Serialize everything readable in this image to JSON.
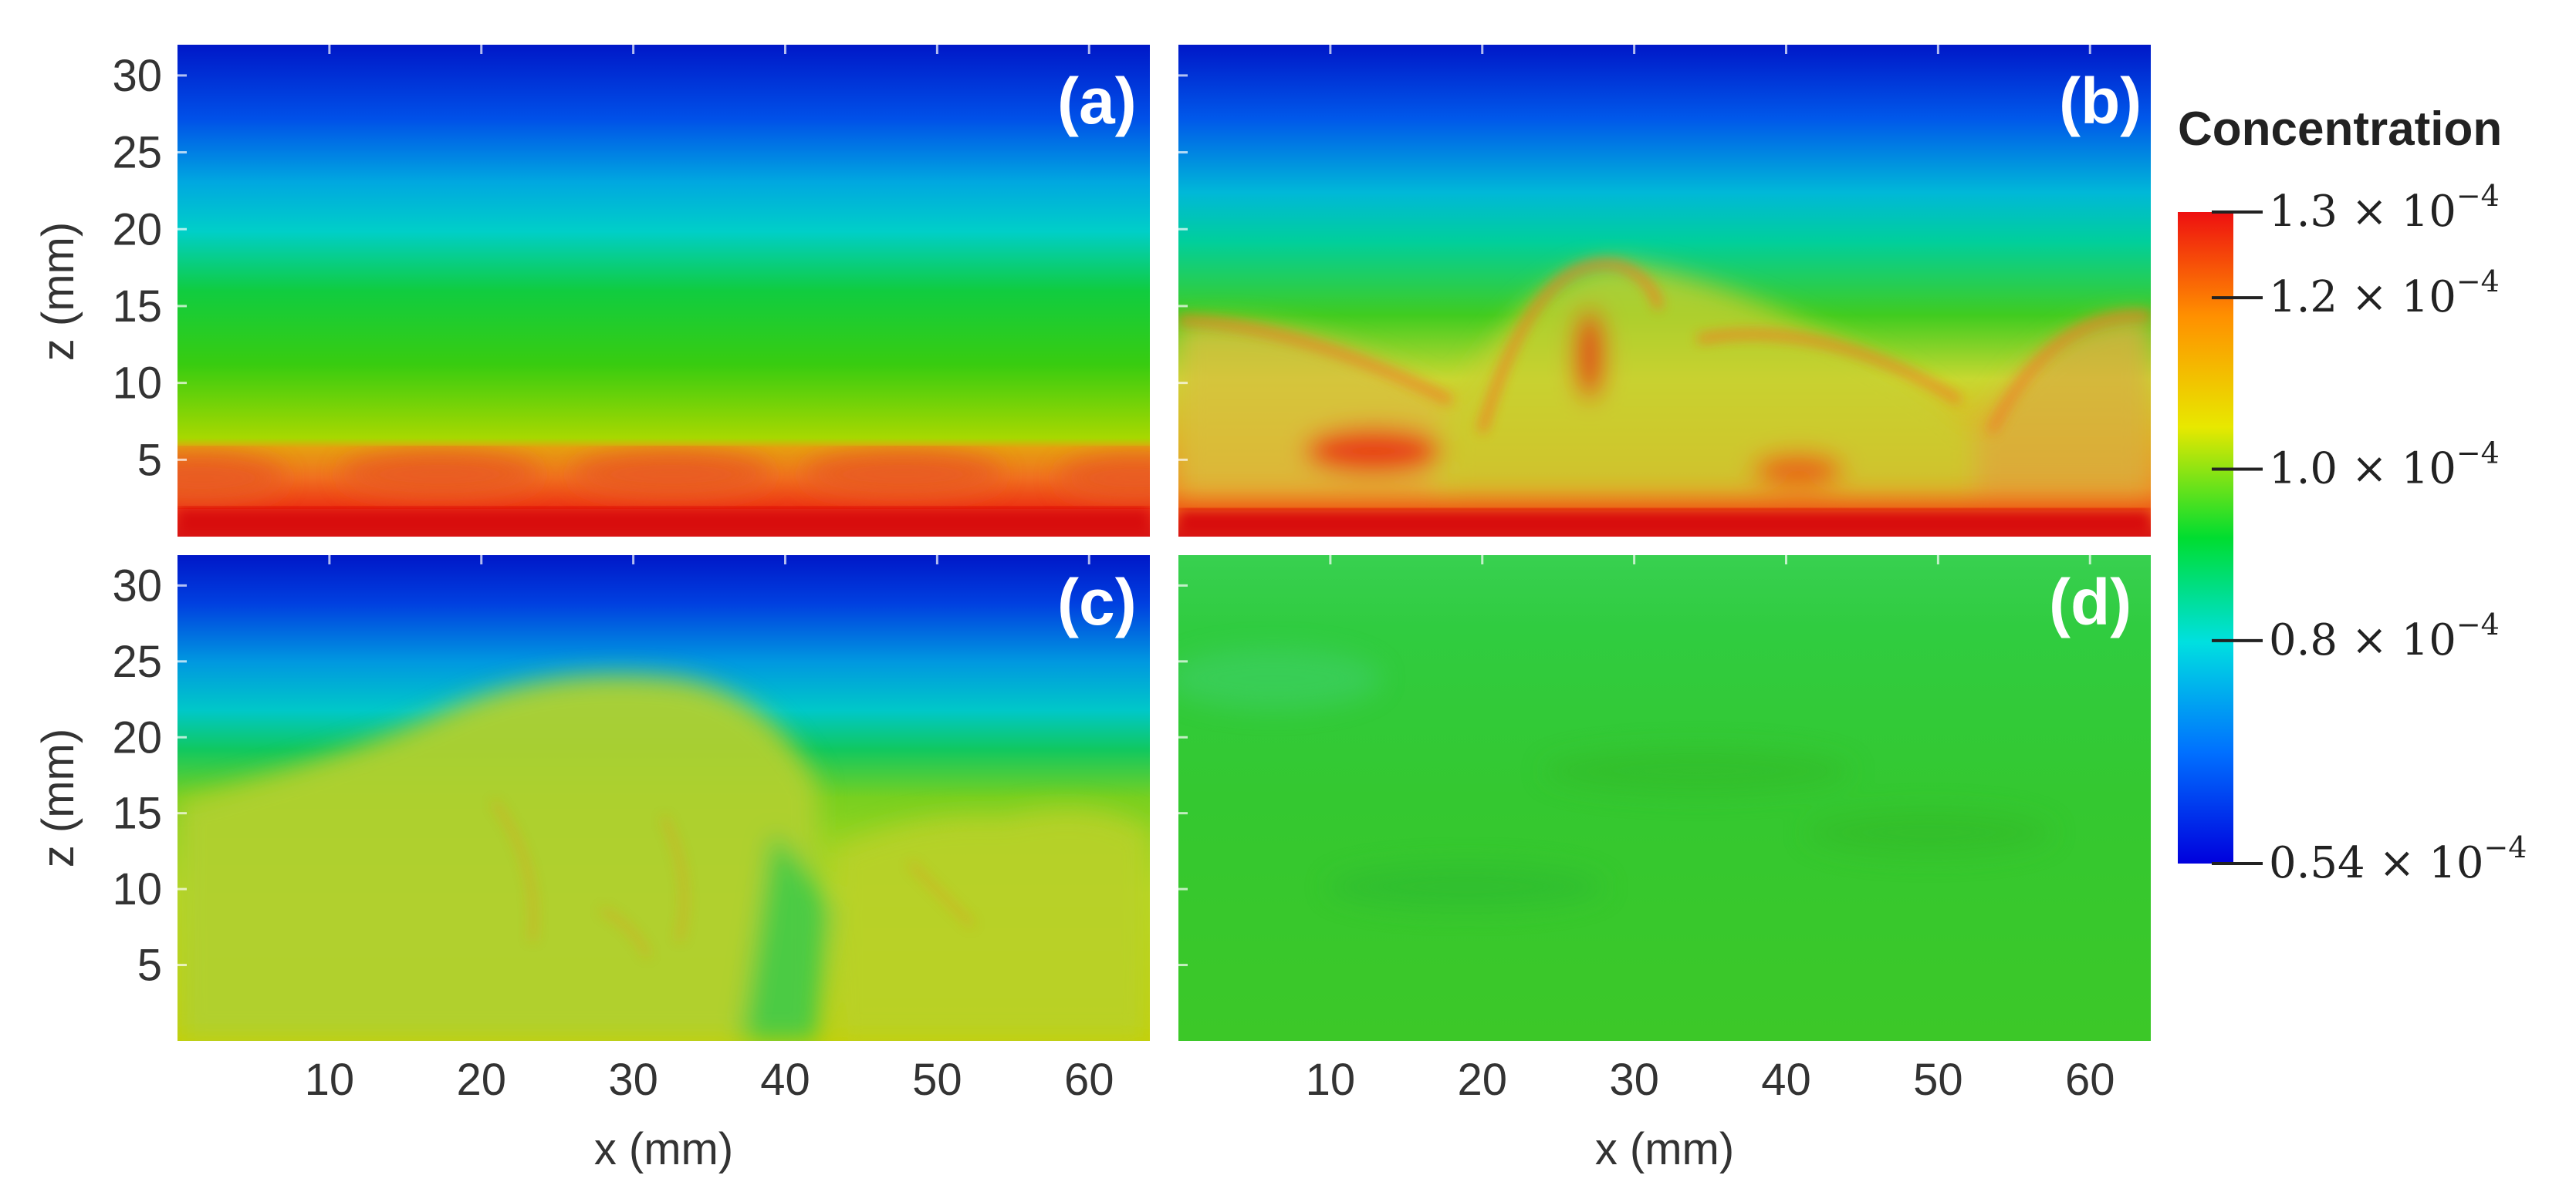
{
  "chart_data": [
    {
      "type": "heatmap",
      "panel_label": "(a)",
      "x_ticks": [
        "10",
        "20",
        "30",
        "40",
        "50",
        "60"
      ],
      "y_ticks": [
        "5",
        "10",
        "15",
        "20",
        "25",
        "30"
      ],
      "xlabel": "",
      "ylabel": "z (mm)",
      "xlim": [
        0,
        64
      ],
      "ylim": [
        0,
        32
      ],
      "description_values": {
        "bottom_layer_top_z": 6,
        "waves": 4
      }
    },
    {
      "type": "heatmap",
      "panel_label": "(b)",
      "x_ticks": [
        "10",
        "20",
        "30",
        "40",
        "50",
        "60"
      ],
      "y_ticks": [],
      "xlabel": "",
      "ylabel": "",
      "xlim": [
        0,
        64
      ],
      "ylim": [
        0,
        32
      ]
    },
    {
      "type": "heatmap",
      "panel_label": "(c)",
      "x_ticks": [
        "10",
        "20",
        "30",
        "40",
        "50",
        "60"
      ],
      "y_ticks": [
        "5",
        "10",
        "15",
        "20",
        "25",
        "30"
      ],
      "xlabel": "x (mm)",
      "ylabel": "z (mm)",
      "xlim": [
        0,
        64
      ],
      "ylim": [
        0,
        32
      ]
    },
    {
      "type": "heatmap",
      "panel_label": "(d)",
      "x_ticks": [
        "10",
        "20",
        "30",
        "40",
        "50",
        "60"
      ],
      "y_ticks": [],
      "xlabel": "x (mm)",
      "ylabel": "",
      "xlim": [
        0,
        64
      ],
      "ylim": [
        0,
        32
      ]
    }
  ],
  "colorbar": {
    "title": "Concentration",
    "ticks": [
      {
        "value": 1.3,
        "label": "1.3 × 10",
        "exp": "−4"
      },
      {
        "value": 1.2,
        "label": "1.2 × 10",
        "exp": "−4"
      },
      {
        "value": 1.0,
        "label": "1.0 × 10",
        "exp": "−4"
      },
      {
        "value": 0.8,
        "label": "0.8 × 10",
        "exp": "−4"
      },
      {
        "value": 0.54,
        "label": "0.54 × 10",
        "exp": "−4"
      }
    ],
    "range": [
      0.54,
      1.3
    ],
    "colors": [
      "#0000dd",
      "#0070ff",
      "#00e0e0",
      "#00dd30",
      "#e8e800",
      "#ff9000",
      "#ee1010"
    ]
  }
}
